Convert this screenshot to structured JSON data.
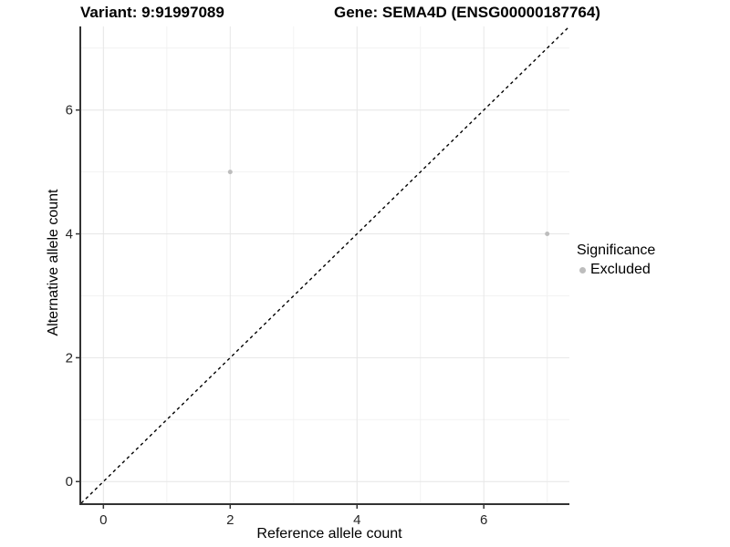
{
  "chart_data": {
    "type": "scatter",
    "title_left": "Variant: 9:91997089",
    "title_right": "Gene: SEMA4D (ENSG00000187764)",
    "xlabel": "Reference allele count",
    "ylabel": "Alternative allele count",
    "xlim": [
      -0.35,
      7.35
    ],
    "ylim": [
      -0.35,
      7.35
    ],
    "x_major_ticks": [
      0,
      2,
      4,
      6
    ],
    "y_major_ticks": [
      0,
      2,
      4,
      6
    ],
    "x_minor_ticks": [
      1,
      3,
      5,
      7
    ],
    "y_minor_ticks": [
      1,
      3,
      5,
      7
    ],
    "grid": true,
    "series": [
      {
        "name": "Excluded",
        "color": "#bdbdbd",
        "point_radius": 2.5,
        "points": [
          {
            "x": 2,
            "y": 5
          },
          {
            "x": 7,
            "y": 4
          }
        ]
      }
    ],
    "reference_line": {
      "kind": "identity",
      "slope": 1,
      "intercept": 0,
      "style": "dashed",
      "color": "#000000"
    },
    "legend": {
      "title": "Significance",
      "position": "right",
      "entries": [
        {
          "label": "Excluded",
          "color": "#bdbdbd"
        }
      ]
    },
    "colors": {
      "background": "#ffffff",
      "grid_major": "#e6e6e6",
      "grid_minor": "#f2f2f2",
      "axis": "#333333",
      "tick_text": "#262626"
    }
  }
}
